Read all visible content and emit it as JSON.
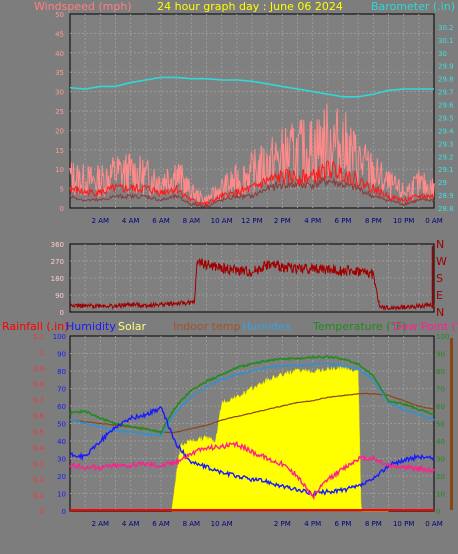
{
  "header": {
    "windspeed_label": "Windspeed (mph)",
    "title": "24 hour graph day : June 06 2024",
    "barometer_label": "Barometer (.in)"
  },
  "colors": {
    "background": "#7d7d7d",
    "panel": "#808080",
    "grid": "#9a9a9a",
    "axis": "#000000",
    "title": "#ffff00",
    "wind_gust": "#ff8a8a",
    "wind_avg": "#ff1a1a",
    "wind_dark": "#8a3a3a",
    "barometer": "#30d8d8",
    "direction": "#a00000",
    "rain": "#ff0000",
    "humidity": "#1a1aff",
    "solar": "#ffff00",
    "indoor": "#8b4513",
    "humidex": "#3090d0",
    "temperature": "#228b22",
    "dewpoint": "#ff2090"
  },
  "time_ticks": [
    "2 AM",
    "4 AM",
    "6 AM",
    "8 AM",
    "10 AM",
    "12 PM",
    "2 PM",
    "4 PM",
    "6 PM",
    "8 PM",
    "10 PM",
    "0 AM"
  ],
  "bottom_ticks": [
    "2 AM",
    "4 AM",
    "6 AM",
    "8 AM",
    "10 AM",
    "",
    "2 PM",
    "4 PM",
    "6 PM",
    "8 PM",
    "10 PM",
    "0 AM"
  ],
  "chart_data": [
    {
      "type": "line",
      "title": "24 hour graph day : June 06 2024",
      "x_unit": "hour of day",
      "left_axis": {
        "label": "Windspeed (mph)",
        "ylim": [
          0,
          50
        ],
        "ticks": [
          "0",
          "5",
          "10",
          "15",
          "20",
          "25",
          "30",
          "35",
          "40",
          "45",
          "50"
        ]
      },
      "right_axis": {
        "label": "Barometer (.in)",
        "ylim": [
          28.8,
          30.3
        ],
        "ticks": [
          "28.8",
          "28.9",
          "29",
          "29.1",
          "29.2",
          "29.3",
          "29.4",
          "29.5",
          "29.6",
          "29.7",
          "29.8",
          "29.9",
          "30",
          "30.1",
          "30.2"
        ]
      },
      "grid": true,
      "series": [
        {
          "key": "wind_gust",
          "x": [
            0,
            1,
            2,
            3,
            4,
            5,
            6,
            7,
            8,
            9,
            10,
            11,
            12,
            13,
            14,
            15,
            16,
            17,
            18,
            19,
            20,
            21,
            22,
            23,
            24
          ],
          "values": [
            8,
            7,
            7,
            9,
            9,
            8,
            7,
            9,
            4,
            2,
            5,
            7,
            9,
            11,
            13,
            14,
            15,
            17,
            16,
            12,
            9,
            6,
            4,
            6,
            5
          ]
        },
        {
          "key": "wind_avg",
          "x": [
            0,
            1,
            2,
            3,
            4,
            5,
            6,
            7,
            8,
            9,
            10,
            11,
            12,
            13,
            14,
            15,
            16,
            17,
            18,
            19,
            20,
            21,
            22,
            23,
            24
          ],
          "values": [
            5,
            4,
            4,
            5,
            5,
            5,
            4,
            5,
            2,
            1,
            3,
            4,
            5,
            7,
            8,
            8,
            8,
            10,
            9,
            7,
            5,
            3,
            2,
            3,
            3
          ]
        },
        {
          "key": "wind_dark",
          "x": [
            0,
            1,
            2,
            3,
            4,
            5,
            6,
            7,
            8,
            9,
            10,
            11,
            12,
            13,
            14,
            15,
            16,
            17,
            18,
            19,
            20,
            21,
            22,
            23,
            24
          ],
          "values": [
            3,
            2,
            2,
            3,
            3,
            3,
            2,
            3,
            1,
            0.5,
            2,
            3,
            3,
            5,
            6,
            6,
            6,
            7,
            6,
            5,
            3,
            2,
            1,
            2,
            2
          ]
        },
        {
          "key": "barometer",
          "x": [
            0,
            1,
            2,
            3,
            4,
            5,
            6,
            7,
            8,
            9,
            10,
            11,
            12,
            13,
            14,
            15,
            16,
            17,
            18,
            19,
            20,
            21,
            22,
            23,
            24
          ],
          "values": [
            29.73,
            29.72,
            29.74,
            29.74,
            29.77,
            29.79,
            29.81,
            29.81,
            29.8,
            29.8,
            29.79,
            29.79,
            29.78,
            29.76,
            29.74,
            29.72,
            29.7,
            29.68,
            29.66,
            29.66,
            29.68,
            29.71,
            29.72,
            29.72,
            29.72
          ]
        }
      ]
    },
    {
      "type": "line",
      "x_unit": "hour of day",
      "left_axis": {
        "ylim": [
          0,
          360
        ],
        "ticks": [
          "0",
          "90",
          "180",
          "270",
          "360"
        ]
      },
      "right_axis": {
        "ticks": [
          "N",
          "E",
          "S",
          "W",
          "N"
        ]
      },
      "grid": true,
      "series": [
        {
          "key": "direction",
          "x": [
            0,
            1,
            2,
            3,
            4,
            5,
            6,
            7,
            8.2,
            8.4,
            9,
            10,
            11,
            12,
            13,
            14,
            15,
            16,
            17,
            18,
            19,
            20,
            20.4,
            21,
            22,
            23,
            24
          ],
          "values": [
            40,
            30,
            35,
            30,
            40,
            35,
            40,
            45,
            50,
            270,
            250,
            230,
            220,
            210,
            250,
            240,
            230,
            230,
            225,
            220,
            215,
            200,
            30,
            20,
            25,
            30,
            40
          ]
        }
      ]
    },
    {
      "type": "line",
      "x_unit": "hour of day",
      "legend": [
        "Rainfall (.in)",
        "Humidity",
        "Solar",
        "Indoor temp",
        "Humidex",
        "Temperature (°F)",
        "Dew Point (°F)"
      ],
      "left_axis_outer": {
        "label": "Rainfall (.in)",
        "ylim": [
          0,
          1.1
        ],
        "ticks": [
          "0",
          "0.1",
          "0.2",
          "0.3",
          "0.4",
          "0.5",
          "0.6",
          "0.7",
          "0.8",
          "0.9",
          "1",
          "1.1"
        ]
      },
      "left_axis_inner": {
        "label": "Humidity",
        "ylim": [
          0,
          100
        ],
        "ticks": [
          "0",
          "10",
          "20",
          "30",
          "40",
          "50",
          "60",
          "70",
          "80",
          "90",
          "100"
        ]
      },
      "right_axis": {
        "label": "Temperature (°F)",
        "ylim": [
          0,
          100
        ],
        "ticks": [
          "0",
          "10",
          "20",
          "30",
          "40",
          "50",
          "60",
          "70",
          "80",
          "90",
          "100"
        ]
      },
      "grid": true,
      "series": [
        {
          "key": "temperature",
          "x": [
            0,
            1,
            2,
            3,
            4,
            5,
            6,
            7,
            8,
            9,
            10,
            11,
            12,
            13,
            14,
            15,
            16,
            17,
            18,
            19,
            20,
            21,
            22,
            23,
            24
          ],
          "values": [
            56,
            57,
            53,
            50,
            48,
            47,
            45,
            60,
            69,
            74,
            78,
            82,
            84,
            86,
            87,
            87,
            88,
            88,
            87,
            84,
            77,
            63,
            61,
            58,
            55
          ]
        },
        {
          "key": "humidex",
          "x": [
            0,
            1,
            2,
            3,
            4,
            5,
            6,
            7,
            8,
            9,
            10,
            11,
            12,
            13,
            14,
            15,
            16,
            17,
            18,
            19,
            20,
            21,
            22,
            23,
            24
          ],
          "values": [
            52,
            50,
            48,
            46,
            45,
            44,
            43,
            57,
            65,
            71,
            75,
            78,
            80,
            82,
            83,
            83,
            84,
            84,
            83,
            81,
            75,
            62,
            58,
            55,
            52
          ]
        },
        {
          "key": "indoor",
          "x": [
            0,
            1,
            2,
            3,
            4,
            5,
            6,
            7,
            8,
            9,
            10,
            11,
            12,
            13,
            14,
            15,
            16,
            17,
            18,
            19,
            20,
            21,
            22,
            23,
            24
          ],
          "values": [
            52,
            51,
            50,
            49,
            48,
            47,
            45,
            45,
            47,
            49,
            52,
            54,
            56,
            58,
            60,
            62,
            63,
            65,
            66,
            67,
            67,
            66,
            63,
            60,
            58
          ]
        },
        {
          "key": "humidity",
          "x": [
            0,
            1,
            2,
            3,
            4,
            5,
            6,
            7,
            8,
            9,
            10,
            11,
            12,
            13,
            14,
            15,
            16,
            17,
            18,
            19,
            20,
            21,
            22,
            23,
            24
          ],
          "values": [
            32,
            31,
            40,
            48,
            53,
            55,
            59,
            38,
            28,
            25,
            22,
            20,
            18,
            17,
            14,
            12,
            10,
            11,
            12,
            14,
            18,
            26,
            29,
            31,
            30
          ]
        },
        {
          "key": "dewpoint",
          "x": [
            0,
            1,
            2,
            3,
            4,
            5,
            6,
            7,
            8,
            9,
            10,
            11,
            12,
            13,
            14,
            15,
            16,
            17,
            18,
            19,
            20,
            21,
            22,
            23,
            24
          ],
          "values": [
            26,
            25,
            25,
            26,
            26,
            27,
            26,
            28,
            33,
            36,
            37,
            38,
            34,
            30,
            27,
            20,
            8,
            18,
            24,
            30,
            30,
            26,
            25,
            24,
            23
          ]
        },
        {
          "key": "solar",
          "x": [
            6.7,
            7.0,
            7.3,
            8,
            9,
            9.6,
            10,
            11,
            12,
            13,
            14,
            15,
            16,
            17,
            18,
            19,
            19.2,
            20,
            21
          ],
          "values": [
            0,
            20,
            38,
            40,
            42,
            40,
            62,
            65,
            70,
            75,
            78,
            80,
            80,
            81,
            82,
            80,
            0,
            0,
            0
          ]
        },
        {
          "key": "rain",
          "x": [
            0,
            24
          ],
          "values": [
            0,
            0
          ]
        }
      ]
    }
  ]
}
